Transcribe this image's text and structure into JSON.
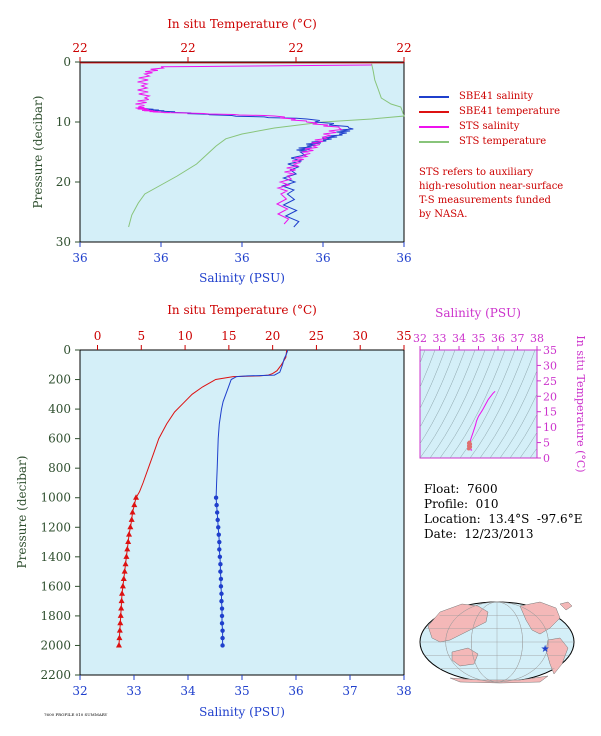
{
  "colors": {
    "plot_bg": "#d4eff8",
    "salinity": "#1f3fcc",
    "temperature": "#dd1111",
    "sts_salinity": "#ee11ee",
    "sts_temperature": "#88c47a",
    "axis_temp_text": "#cc0000",
    "axis_sal_text": "#1f3fcc",
    "axis_pres_text": "#2f4f2f",
    "ts_axis_text": "#cc33cc",
    "land": "#f4b8b8"
  },
  "top_chart": {
    "type": "line",
    "xlabel_top": "In situ Temperature (°C)",
    "xlabel_bottom": "Salinity (PSU)",
    "ylabel": "Pressure (decibar)",
    "temp_ticks": [
      "22",
      "22",
      "22",
      "22"
    ],
    "sal_ticks": [
      "36",
      "36",
      "36",
      "36",
      "36"
    ],
    "pres_ticks": [
      "0",
      "10",
      "20",
      "30"
    ],
    "ylim": [
      30,
      0
    ],
    "legend": [
      {
        "label": "SBE41 salinity",
        "color": "#1f3fcc"
      },
      {
        "label": "SBE41 temperature",
        "color": "#dd1111"
      },
      {
        "label": "STS salinity",
        "color": "#ee11ee"
      },
      {
        "label": "STS temperature",
        "color": "#88c47a"
      }
    ],
    "note": [
      "STS refers to auxiliary",
      "high-resolution near-surface",
      "T-S measurements funded",
      "by NASA."
    ],
    "sts_temperature": {
      "x": [
        0.9,
        0.905,
        0.91,
        0.92,
        0.93,
        0.96,
        0.99,
        1.0,
        0.9,
        0.75,
        0.6,
        0.5,
        0.45,
        0.42,
        0.4,
        0.36,
        0.3,
        0.25,
        0.2,
        0.18,
        0.16,
        0.15
      ],
      "p": [
        0.3,
        1.5,
        3,
        4.5,
        6,
        7,
        7.5,
        9,
        9.5,
        10,
        11,
        12,
        12.8,
        14,
        15,
        17,
        19,
        20.5,
        22,
        23.5,
        25.5,
        27.5
      ]
    },
    "sts_salinity": {
      "x": [
        0.9,
        0.25,
        0.2,
        0.19,
        0.2,
        0.18,
        0.2,
        0.22,
        0.25,
        0.32,
        0.6,
        0.7,
        0.8,
        0.75,
        0.72,
        0.69,
        0.66,
        0.64,
        0.62,
        0.63
      ],
      "p": [
        0.5,
        0.8,
        2,
        4,
        6,
        7.5,
        8,
        8.2,
        8.4,
        8.5,
        9,
        10,
        11,
        12.5,
        14,
        15.5,
        17,
        19,
        22,
        27
      ]
    },
    "sbe41_salinity": {
      "x": [
        0.2,
        0.25,
        0.4,
        0.7,
        0.83,
        0.8,
        0.75,
        0.7,
        0.68,
        0.65,
        0.64,
        0.66
      ],
      "p": [
        7.8,
        8.2,
        8.8,
        9.5,
        11,
        12,
        13,
        14,
        15,
        18,
        22,
        27.5
      ]
    },
    "sbe41_temperature": {
      "x": [
        0.0,
        1.0
      ],
      "p": [
        0.15,
        0.15
      ]
    }
  },
  "chart_data": {
    "type": "line",
    "title": "",
    "xlabel_top": "In situ Temperature (°C)",
    "xlabel": "Salinity (PSU)",
    "ylabel": "Pressure (decibar)",
    "temp_ticks": [
      0,
      5,
      10,
      15,
      20,
      25,
      30,
      35
    ],
    "xlim_temp": [
      -2,
      35
    ],
    "xlim": [
      32,
      38
    ],
    "sal_ticks": [
      32,
      33,
      34,
      35,
      36,
      37,
      38
    ],
    "ylim": [
      2200,
      0
    ],
    "pres_ticks": [
      0,
      200,
      400,
      600,
      800,
      1000,
      1200,
      1400,
      1600,
      1800,
      2000,
      2200
    ],
    "series": [
      {
        "name": "temperature",
        "axis": "temperature",
        "x": [
          21.6,
          21.5,
          21.2,
          21.0,
          20.5,
          20.0,
          19.5,
          18.5,
          15.5,
          13.5,
          12.0,
          10.8,
          9.8,
          8.8,
          7.9,
          7.0,
          6.4,
          5.8,
          5.2,
          4.8,
          4.4
        ],
        "p": [
          0,
          50,
          80,
          100,
          140,
          160,
          170,
          175,
          180,
          200,
          250,
          300,
          360,
          420,
          500,
          600,
          700,
          800,
          900,
          960,
          1000
        ]
      },
      {
        "name": "temperature_bottles",
        "axis": "temperature",
        "markers": "triangle",
        "x": [
          4.4,
          4.2,
          4.0,
          3.9,
          3.75,
          3.6,
          3.5,
          3.4,
          3.3,
          3.2,
          3.1,
          3.0,
          2.9,
          2.8,
          2.75,
          2.7,
          2.65,
          2.6,
          2.55,
          2.5,
          2.45
        ],
        "p": [
          1000,
          1050,
          1100,
          1150,
          1200,
          1250,
          1300,
          1350,
          1400,
          1450,
          1500,
          1550,
          1600,
          1650,
          1700,
          1750,
          1800,
          1850,
          1900,
          1950,
          2000
        ]
      },
      {
        "name": "salinity",
        "axis": "salinity",
        "x": [
          35.85,
          35.82,
          35.78,
          35.75,
          35.7,
          35.6,
          35.1,
          34.9,
          34.85,
          34.8,
          34.75,
          34.7,
          34.65,
          34.62,
          34.6,
          34.58,
          34.56,
          34.55,
          34.54,
          34.53,
          34.52
        ],
        "p": [
          0,
          30,
          60,
          100,
          150,
          170,
          175,
          180,
          190,
          200,
          250,
          300,
          350,
          400,
          450,
          500,
          600,
          700,
          800,
          900,
          1000
        ]
      },
      {
        "name": "salinity_bottles",
        "axis": "salinity",
        "markers": "circle",
        "x": [
          34.52,
          34.53,
          34.54,
          34.55,
          34.56,
          34.57,
          34.58,
          34.58,
          34.59,
          34.6,
          34.6,
          34.61,
          34.61,
          34.62,
          34.62,
          34.63,
          34.63,
          34.63,
          34.64,
          34.64,
          34.64
        ],
        "p": [
          1000,
          1050,
          1100,
          1150,
          1200,
          1250,
          1300,
          1350,
          1400,
          1450,
          1500,
          1550,
          1600,
          1650,
          1700,
          1750,
          1800,
          1850,
          1900,
          1950,
          2000
        ]
      }
    ]
  },
  "ts_chart": {
    "xlabel": "Salinity (PSU)",
    "ylabel": "In situ Temperature (°C)",
    "sal_ticks": [
      32,
      33,
      34,
      35,
      36,
      37,
      38
    ],
    "temp_ticks": [
      0,
      5,
      10,
      15,
      20,
      25,
      30,
      35
    ],
    "profile_s": [
      35.85,
      35.75,
      35.5,
      35.2,
      35.0,
      34.9,
      34.85,
      34.8,
      34.75,
      34.7,
      34.65,
      34.6,
      34.58,
      34.55,
      34.53,
      34.6,
      34.64,
      34.6
    ],
    "profile_t": [
      21.6,
      21.0,
      19.0,
      15.5,
      13.5,
      12.0,
      10.8,
      9.8,
      8.8,
      7.9,
      7.0,
      6.0,
      5.2,
      4.4,
      3.5,
      3.0,
      2.6,
      2.45
    ]
  },
  "info": {
    "float": "Float:  7600",
    "profile": "Profile:  010",
    "location": "Location:  13.4°S  -97.6°E",
    "date": "Date:  12/23/2013"
  },
  "map": {
    "marker_lon": -97.6,
    "marker_lat": -13.4
  },
  "footer": "7600 PROFILE 010 SUMMARY"
}
